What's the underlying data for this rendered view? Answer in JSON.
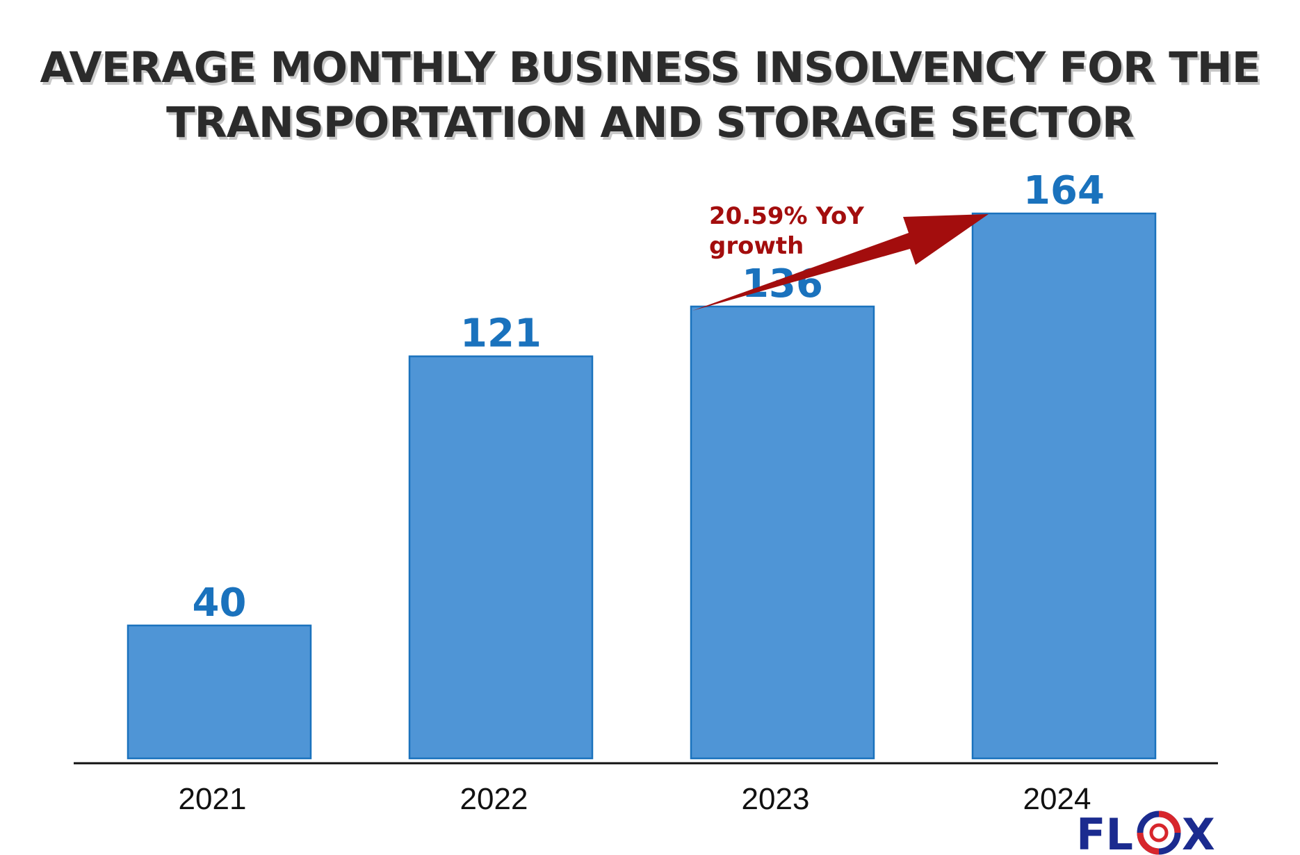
{
  "chart_data": {
    "type": "bar",
    "title_lines": [
      "AVERAGE MONTHLY BUSINESS INSOLVENCY FOR THE",
      "TRANSPORTATION AND STORAGE SECTOR"
    ],
    "categories": [
      "2021",
      "2022",
      "2023",
      "2024"
    ],
    "values": [
      40,
      121,
      136,
      164
    ],
    "data_labels": [
      "40",
      "121",
      "136",
      "164"
    ],
    "ylim": [
      0,
      180
    ],
    "grid": false,
    "bar_color": "#4f95d6",
    "bar_edge_color": "#1a72bd",
    "label_color": "#1a72bd",
    "annotation": {
      "lines": [
        "20.59% YoY",
        "growth"
      ],
      "color": "#a30d0d",
      "arrow": "from-2023-to-2024"
    }
  },
  "brand": {
    "logo_left": "FL",
    "logo_right": "X",
    "logo_icon": "target-ring-icon",
    "primary_color": "#1b2b8f",
    "accent_color": "#d7262c"
  }
}
